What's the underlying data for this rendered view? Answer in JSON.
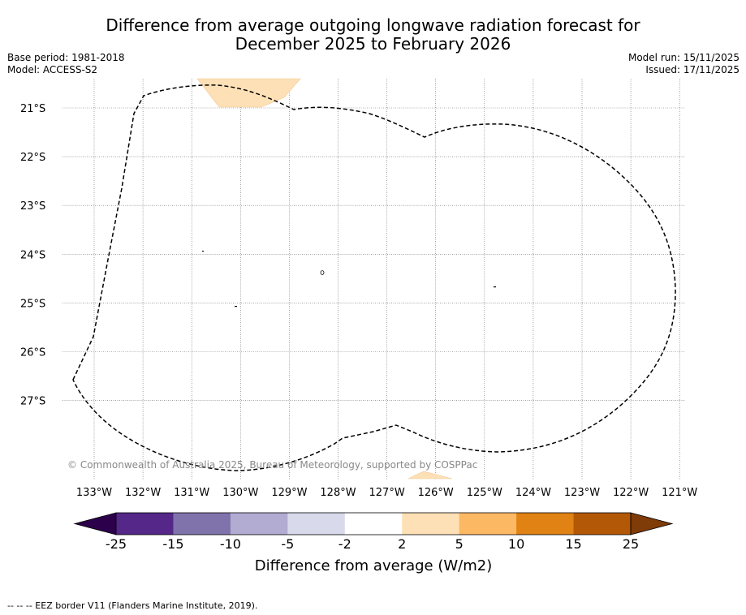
{
  "title_line1": "Difference from average outgoing longwave radiation forecast for",
  "title_line2": "December 2025 to February 2026",
  "base_period": "Base period: 1981-2018",
  "model": "Model: ACCESS-S2",
  "model_run": "Model run: 15/11/2025",
  "issued": "Issued: 17/11/2025",
  "copyright": "© Commonwealth of Australia 2025, Bureau of Meteorology, supported by COSPPac",
  "map": {
    "lon_labels": [
      "133°W",
      "132°W",
      "131°W",
      "130°W",
      "129°W",
      "128°W",
      "127°W",
      "126°W",
      "125°W",
      "124°W",
      "123°W",
      "122°W",
      "121°W"
    ],
    "lat_labels": [
      "21°S",
      "22°S",
      "23°S",
      "24°S",
      "25°S",
      "26°S",
      "27°S"
    ],
    "eez_label": "EEZ border"
  },
  "colorbar": {
    "ticks": [
      "-25",
      "-15",
      "-10",
      "-5",
      "-2",
      "2",
      "5",
      "10",
      "15",
      "25"
    ],
    "label": "Difference from average (W/m2)",
    "colors": [
      "#2d004b",
      "#542788",
      "#8073ac",
      "#b2abd2",
      "#d8daeb",
      "#ffffff",
      "#fee0b6",
      "#fdb863",
      "#e08214",
      "#b35806",
      "#7f3b08"
    ]
  },
  "footer": "--  --  -- EEZ border V11 (Flanders Marine Institute, 2019)."
}
